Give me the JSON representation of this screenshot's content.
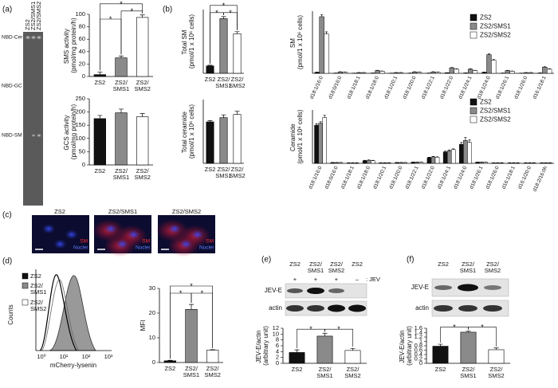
{
  "panels": [
    "(a)",
    "(b)",
    "(c)",
    "(d)",
    "(e)",
    "(f)"
  ],
  "blot_a": {
    "lanes": [
      "ZS2",
      "ZS2/SMS1",
      "ZS2/SMS2"
    ],
    "bands": [
      "NBD-Cer",
      "NBD-GC",
      "NBD-SM"
    ]
  },
  "micrographs": {
    "lanes": [
      "ZS2",
      "ZS2/SMS1",
      "ZS2/SMS2"
    ],
    "stains": [
      "SM",
      "Nuclei"
    ]
  },
  "histogram": {
    "ylabel": "Counts",
    "xlabel": "mCherry-lysenin",
    "xticks": [
      "10⁰",
      "10¹",
      "10²",
      "10³"
    ],
    "legend": [
      "ZS2",
      "ZS2/SMS1",
      "ZS2/SMS2"
    ]
  },
  "blot_e": {
    "lanes": [
      "ZS2",
      "ZS2/SMS1",
      "ZS2/SMS2",
      "ZS2"
    ],
    "treatment": [
      "+",
      "+",
      "+",
      "–"
    ],
    "treatment_label": ": JEV",
    "bands": [
      "JEV-E",
      "actin"
    ]
  },
  "blot_f": {
    "lanes": [
      "ZS2",
      "ZS2/SMS1",
      "ZS2/SMS2"
    ],
    "bands": [
      "JEV-E",
      "actin"
    ]
  },
  "chart_data": [
    {
      "type": "bar",
      "ylabel": "SMS activity (pmol/mg protein/h)",
      "categories": [
        "ZS2",
        "ZS2/SMS1",
        "ZS2/SMS2"
      ],
      "values": [
        3,
        30,
        95
      ],
      "errors": [
        4,
        3,
        4
      ],
      "colors": [
        "#111111",
        "#8a8a8a",
        "#ffffff"
      ],
      "ylim": [
        0,
        100
      ],
      "yticks": [
        0,
        20,
        40,
        60,
        80,
        100
      ],
      "brackets": [
        {
          "pair": [
            0,
            1
          ],
          "label": "*"
        },
        {
          "pair": [
            1,
            2
          ],
          "label": "*"
        },
        {
          "pair": [
            0,
            2
          ],
          "label": "*"
        }
      ]
    },
    {
      "type": "bar",
      "ylabel": "GCS activity (pmol/mg protein/h)",
      "categories": [
        "ZS2",
        "ZS2/SMS1",
        "ZS2/SMS2"
      ],
      "values": [
        175,
        197,
        182
      ],
      "errors": [
        12,
        14,
        12
      ],
      "colors": [
        "#111111",
        "#8a8a8a",
        "#ffffff"
      ],
      "ylim": [
        0,
        250
      ],
      "yticks": [
        0,
        50,
        100,
        150,
        200,
        250
      ]
    },
    {
      "type": "bar",
      "ylabel": "Total SM (pmol/1 x 10⁶ cells)",
      "categories": [
        "ZS2",
        "ZS2/SMS1",
        "ZS2/SMS2"
      ],
      "values": [
        22,
        163,
        118
      ],
      "errors": [
        2,
        6,
        6
      ],
      "colors": [
        "#111111",
        "#8a8a8a",
        "#ffffff"
      ],
      "ylim": [
        0,
        190
      ],
      "brackets": [
        {
          "pair": [
            0,
            1
          ],
          "label": "*"
        },
        {
          "pair": [
            1,
            2
          ],
          "label": "*"
        },
        {
          "pair": [
            0,
            2
          ],
          "label": "*"
        }
      ]
    },
    {
      "type": "bar",
      "ylabel": "Total ceramide (pmol/1 x 10⁶ cells)",
      "categories": [
        "ZS2",
        "ZS2/SMS1",
        "ZS2/SMS2"
      ],
      "values": [
        19.5,
        21.5,
        23
      ],
      "errors": [
        0.6,
        1.3,
        1.5
      ],
      "colors": [
        "#111111",
        "#8a8a8a",
        "#ffffff"
      ],
      "ylim": [
        0,
        30
      ]
    },
    {
      "type": "bar",
      "ylabel": "SM (pmol/1 x 10⁶ cells)",
      "legend": "upper right",
      "categories": [
        "d18:1/16:0",
        "d18:0/16:0",
        "d18:1/18:1",
        "d18:1/18:0",
        "d18:1/20:1",
        "d18:1/20:0",
        "d18:1/22:1",
        "d18:1/22:0",
        "d18:1/24:1",
        "d18:1/24:0",
        "d18:1/26:1",
        "d18:1/26:0",
        "d16:1/18:1"
      ],
      "series": [
        {
          "name": "ZS2",
          "color": "#111111",
          "values": [
            1.5,
            0.3,
            0.2,
            0.4,
            0.2,
            0.3,
            0.3,
            0.8,
            0.5,
            1.5,
            0.3,
            0.2,
            0.5
          ],
          "errors": [
            0.2,
            0.1,
            0.1,
            0.1,
            0.1,
            0.1,
            0.1,
            0.1,
            0.1,
            0.2,
            0.1,
            0.1,
            0.1
          ]
        },
        {
          "name": "ZS2/SMS1",
          "color": "#8a8a8a",
          "values": [
            82,
            2,
            1,
            4,
            1,
            2,
            2,
            8,
            6,
            27,
            4,
            1,
            9
          ],
          "errors": [
            3,
            0.3,
            0.2,
            0.4,
            0.2,
            0.3,
            0.3,
            0.6,
            0.5,
            1,
            0.4,
            0.2,
            0.6
          ]
        },
        {
          "name": "ZS2/SMS2",
          "color": "#ffffff",
          "values": [
            57,
            1.5,
            1,
            3,
            1,
            1.5,
            1.5,
            6,
            4,
            19,
            3,
            1,
            6
          ],
          "errors": [
            3,
            0.2,
            0.2,
            0.3,
            0.2,
            0.2,
            0.2,
            0.5,
            0.4,
            1,
            0.3,
            0.2,
            0.5
          ]
        }
      ],
      "ylim": [
        0,
        90
      ]
    },
    {
      "type": "bar",
      "ylabel": "Ceramide (pmol/1 x 10⁶ cells)",
      "legend": "upper right",
      "categories": [
        "d18:1/16:0",
        "d18:0/16:0",
        "d18:1/18:1",
        "d18:1/18:0",
        "d18:1/20:1",
        "d18:1/20:0",
        "d18:1/22:1",
        "d18:1/22:0",
        "d18:1/24:1",
        "d18:1/24:0",
        "d18:1/26:1",
        "d18:1/26:0",
        "d16:1/18:1",
        "d16:1/20:0",
        "d18:2/16:0h"
      ],
      "series": [
        {
          "name": "ZS2",
          "color": "#111111",
          "values": [
            10,
            0.2,
            0.1,
            0.7,
            0.1,
            0.2,
            0.3,
            1.5,
            3,
            5,
            0.3,
            0.1,
            0.1,
            0.1,
            0.1
          ],
          "errors": [
            0.4,
            0.05,
            0.05,
            0.1,
            0.05,
            0.05,
            0.05,
            0.1,
            0.2,
            0.5,
            0.05,
            0.05,
            0.05,
            0.05,
            0.05
          ]
        },
        {
          "name": "ZS2/SMS1",
          "color": "#8a8a8a",
          "values": [
            10.5,
            0.2,
            0.1,
            0.8,
            0.1,
            0.2,
            0.3,
            1.7,
            3.3,
            6,
            0.3,
            0.1,
            0.1,
            0.1,
            0.1
          ],
          "errors": [
            0.4,
            0.05,
            0.05,
            0.1,
            0.05,
            0.05,
            0.05,
            0.1,
            0.2,
            0.8,
            0.05,
            0.05,
            0.05,
            0.05,
            0.05
          ]
        },
        {
          "name": "ZS2/SMS2",
          "color": "#ffffff",
          "values": [
            12,
            0.2,
            0.1,
            0.7,
            0.1,
            0.2,
            0.3,
            1.6,
            3.6,
            5.5,
            0.3,
            0.1,
            0.1,
            0.1,
            0.1
          ],
          "errors": [
            0.6,
            0.05,
            0.05,
            0.1,
            0.05,
            0.05,
            0.05,
            0.1,
            0.2,
            0.7,
            0.05,
            0.05,
            0.05,
            0.05,
            0.05
          ]
        }
      ],
      "ylim": [
        0,
        14
      ]
    },
    {
      "type": "bar",
      "ylabel": "MFI",
      "categories": [
        "ZS2",
        "ZS2/SMS1",
        "ZS2/SMS2"
      ],
      "values": [
        0.7,
        21.5,
        5
      ],
      "errors": [
        0.2,
        2,
        0.2
      ],
      "colors": [
        "#111111",
        "#8a8a8a",
        "#ffffff"
      ],
      "ylim": [
        0,
        30
      ],
      "yticks": [
        0,
        10,
        20,
        30
      ],
      "brackets": [
        {
          "pair": [
            0,
            1
          ],
          "label": "*"
        },
        {
          "pair": [
            1,
            2
          ],
          "label": "*"
        },
        {
          "pair": [
            0,
            2
          ],
          "label": "*"
        }
      ]
    },
    {
      "type": "bar",
      "ylabel": "JEV-E/actin (arbitrary unit)",
      "categories": [
        "ZS2",
        "ZS2/SMS1",
        "ZS2/SMS2"
      ],
      "values": [
        3.7,
        9.3,
        4.4
      ],
      "errors": [
        0.9,
        1,
        0.7
      ],
      "colors": [
        "#111111",
        "#8a8a8a",
        "#ffffff"
      ],
      "ylim": [
        0,
        12
      ],
      "yticks": [
        0,
        2,
        4,
        6,
        8,
        10,
        12
      ],
      "brackets": [
        {
          "pair": [
            0,
            1
          ],
          "label": "*"
        },
        {
          "pair": [
            1,
            2
          ],
          "label": "*"
        }
      ]
    },
    {
      "type": "bar",
      "ylabel": "JEV-E/actin (arbitrary unit)",
      "categories": [
        "ZS2",
        "ZS2/SMS1",
        "ZS2/SMS2"
      ],
      "values": [
        0.78,
        1.42,
        0.62
      ],
      "errors": [
        0.09,
        0.05,
        0.08
      ],
      "colors": [
        "#111111",
        "#8a8a8a",
        "#ffffff"
      ],
      "ylim": [
        0,
        1.6
      ],
      "yticks": [
        0,
        0.2,
        0.4,
        0.6,
        0.8,
        1,
        1.2,
        1.4,
        1.6
      ],
      "brackets": [
        {
          "pair": [
            0,
            1
          ],
          "label": "*"
        },
        {
          "pair": [
            1,
            2
          ],
          "label": "*"
        }
      ]
    }
  ]
}
